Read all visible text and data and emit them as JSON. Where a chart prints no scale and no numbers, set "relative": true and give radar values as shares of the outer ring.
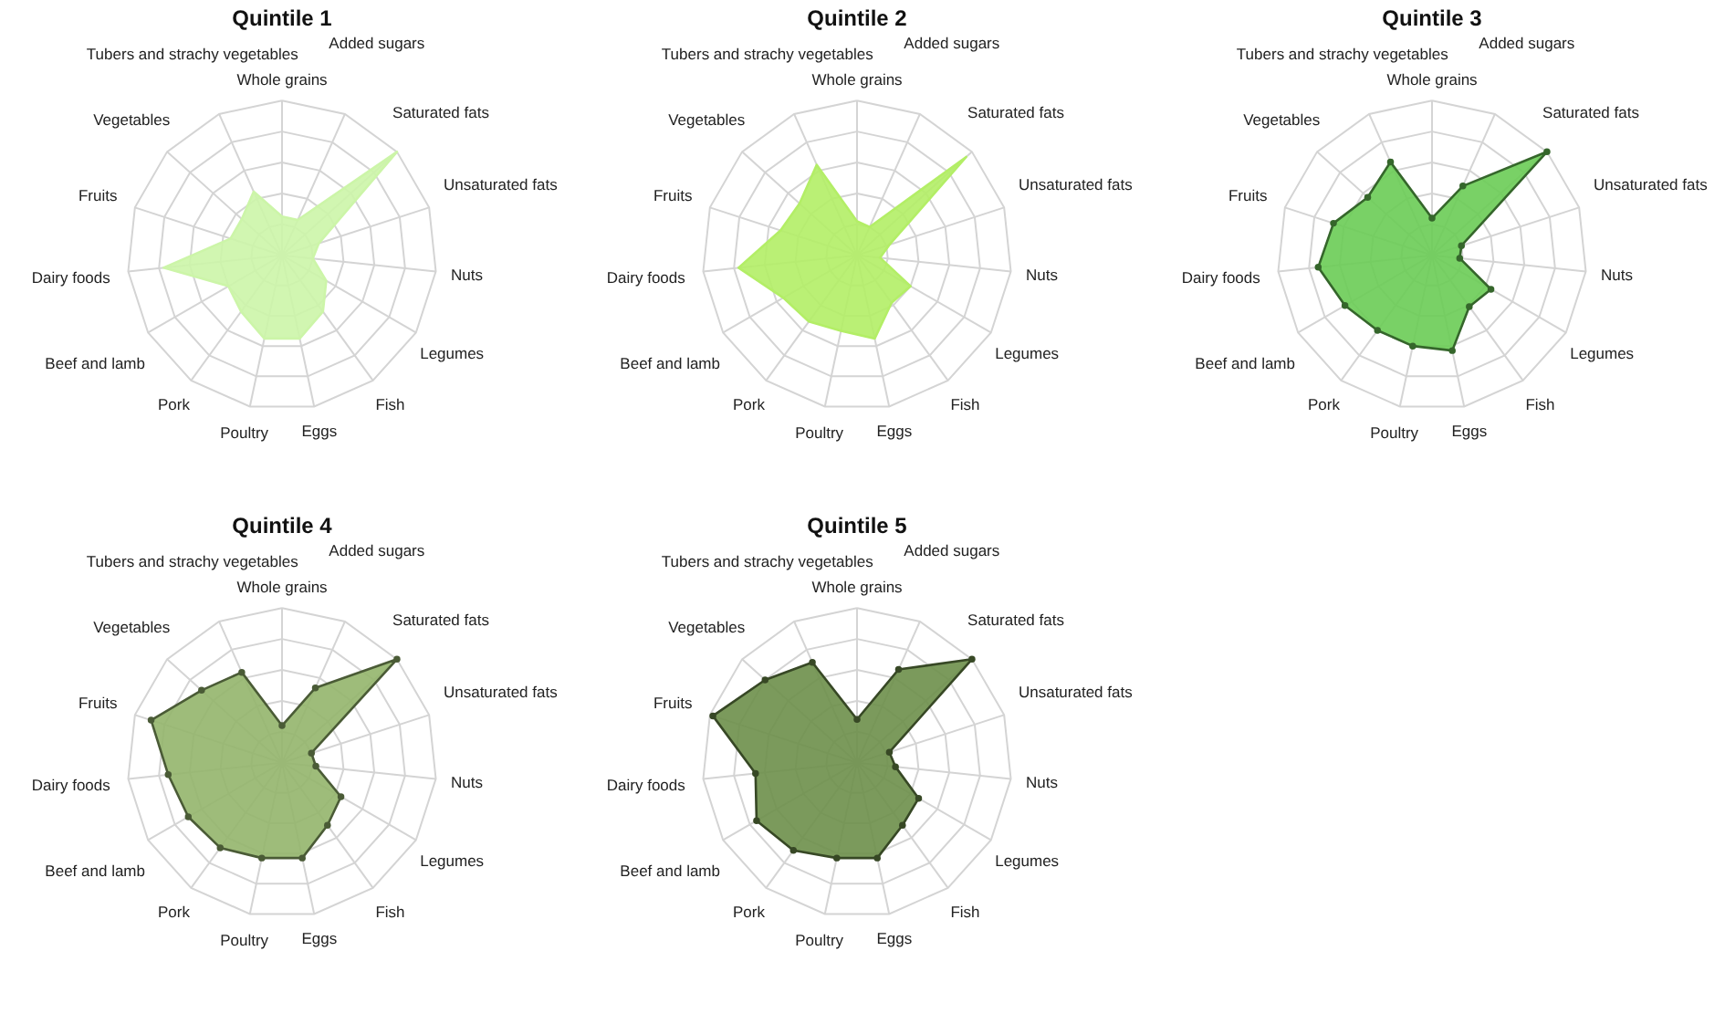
{
  "chart_data": [
    {
      "type": "radar",
      "title": "Quintile 1",
      "categories": [
        "Whole grains",
        "Added sugars",
        "Saturated fats",
        "Unsaturated fats",
        "Nuts",
        "Legumes",
        "Fish",
        "Eggs",
        "Poultry",
        "Pork",
        "Beef and lamb",
        "Dairy foods",
        "Fruits",
        "Vegetables",
        "Tubers and strachy vegetables"
      ],
      "relative": true,
      "grid": true,
      "marker": "none",
      "series": [
        {
          "color": "#ccf5a8",
          "values": [
            0.25,
            0.25,
            1.0,
            0.25,
            0.2,
            0.33,
            0.45,
            0.55,
            0.55,
            0.45,
            0.4,
            0.77,
            0.35,
            0.35,
            0.45
          ]
        }
      ]
    },
    {
      "type": "radar",
      "title": "Quintile 2",
      "categories": [
        "Whole grains",
        "Added sugars",
        "Saturated fats",
        "Unsaturated fats",
        "Nuts",
        "Legumes",
        "Fish",
        "Eggs",
        "Poultry",
        "Pork",
        "Beef and lamb",
        "Dairy foods",
        "Fruits",
        "Vegetables",
        "Tubers and strachy vegetables"
      ],
      "relative": true,
      "grid": true,
      "marker": "none",
      "series": [
        {
          "color": "#b3ee66",
          "values": [
            0.22,
            0.2,
            0.95,
            0.22,
            0.15,
            0.4,
            0.38,
            0.55,
            0.5,
            0.53,
            0.55,
            0.77,
            0.52,
            0.5,
            0.64
          ]
        }
      ]
    },
    {
      "type": "radar",
      "title": "Quintile 3",
      "categories": [
        "Whole grains",
        "Added sugars",
        "Saturated fats",
        "Unsaturated fats",
        "Nuts",
        "Legumes",
        "Fish",
        "Eggs",
        "Poultry",
        "Pork",
        "Beef and lamb",
        "Dairy foods",
        "Fruits",
        "Vegetables",
        "Tubers and strachy vegetables"
      ],
      "relative": true,
      "grid": true,
      "marker": "circle",
      "series": [
        {
          "color": "#6acc55",
          "values": [
            0.24,
            0.49,
            1.0,
            0.2,
            0.18,
            0.44,
            0.41,
            0.63,
            0.6,
            0.6,
            0.65,
            0.74,
            0.67,
            0.56,
            0.66
          ]
        }
      ]
    },
    {
      "type": "radar",
      "title": "Quintile 4",
      "categories": [
        "Whole grains",
        "Added sugars",
        "Saturated fats",
        "Unsaturated fats",
        "Nuts",
        "Legumes",
        "Fish",
        "Eggs",
        "Poultry",
        "Pork",
        "Beef and lamb",
        "Dairy foods",
        "Fruits",
        "Vegetables",
        "Tubers and strachy vegetables"
      ],
      "relative": true,
      "grid": true,
      "marker": "circle",
      "series": [
        {
          "color": "#93b56b",
          "values": [
            0.24,
            0.53,
            1.0,
            0.2,
            0.22,
            0.44,
            0.5,
            0.63,
            0.63,
            0.68,
            0.7,
            0.74,
            0.89,
            0.7,
            0.64
          ]
        }
      ]
    },
    {
      "type": "radar",
      "title": "Quintile 5",
      "categories": [
        "Whole grains",
        "Added sugars",
        "Saturated fats",
        "Unsaturated fats",
        "Nuts",
        "Legumes",
        "Fish",
        "Eggs",
        "Poultry",
        "Pork",
        "Beef and lamb",
        "Dairy foods",
        "Fruits",
        "Vegetables",
        "Tubers and strachy vegetables"
      ],
      "relative": true,
      "grid": true,
      "marker": "circle",
      "series": [
        {
          "color": "#6d8f4a",
          "values": [
            0.28,
            0.66,
            1.0,
            0.22,
            0.25,
            0.46,
            0.5,
            0.63,
            0.63,
            0.7,
            0.75,
            0.66,
            0.98,
            0.8,
            0.71
          ]
        }
      ]
    }
  ]
}
